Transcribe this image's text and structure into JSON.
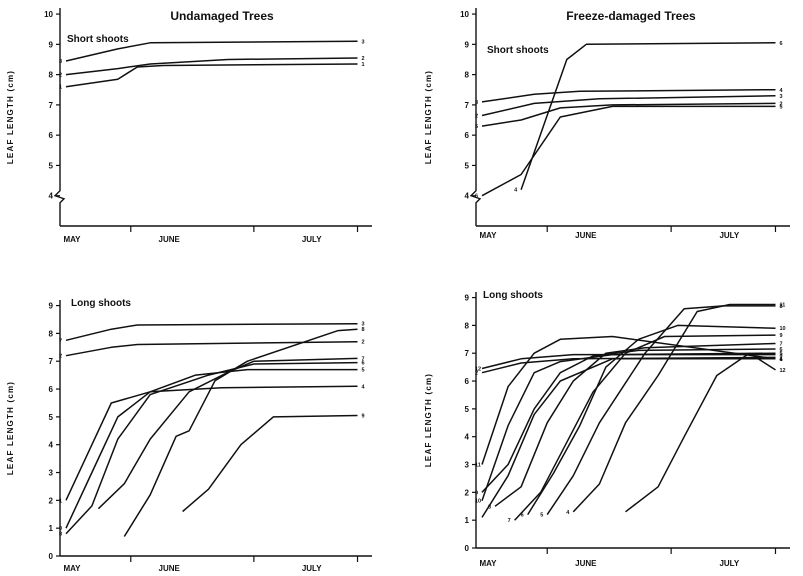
{
  "chart_data": [
    {
      "id": "p1",
      "type": "line",
      "title": "Undamaged Trees",
      "subtitle": "Short shoots",
      "ylabel": "LEAF LENGTH (cm)",
      "xlabel": "",
      "months": [
        "MAY",
        "JUNE",
        "JULY"
      ],
      "yticks": [
        "4",
        "5",
        "6",
        "7",
        "8",
        "9",
        "10"
      ],
      "ylim": [
        3,
        10.2
      ],
      "axis_break": true,
      "series": [
        {
          "label": "3",
          "points": [
            [
              0,
              8.45
            ],
            [
              8,
              8.85
            ],
            [
              13,
              9.05
            ],
            [
              45,
              9.1
            ]
          ],
          "label_at": "end"
        },
        {
          "label": "2",
          "points": [
            [
              0,
              8.0
            ],
            [
              8,
              8.2
            ],
            [
              13,
              8.35
            ],
            [
              25,
              8.5
            ],
            [
              45,
              8.55
            ]
          ],
          "label_at": "end"
        },
        {
          "label": "1",
          "points": [
            [
              0,
              7.6
            ],
            [
              8,
              7.85
            ],
            [
              11,
              8.25
            ],
            [
              15,
              8.3
            ],
            [
              45,
              8.35
            ]
          ],
          "label_at": "end"
        }
      ],
      "start_labels": [
        "3",
        "2",
        "1"
      ]
    },
    {
      "id": "p2",
      "type": "line",
      "title": "Freeze-damaged Trees",
      "subtitle": "Short shoots",
      "ylabel": "LEAF LENGTH (cm)",
      "xlabel": "",
      "months": [
        "MAY",
        "JUNE",
        "JULY"
      ],
      "yticks": [
        "4",
        "5",
        "6",
        "7",
        "8",
        "9",
        "10"
      ],
      "ylim": [
        3,
        10.2
      ],
      "axis_break": true,
      "series": [
        {
          "label": "6",
          "points": [
            [
              6,
              4.2
            ],
            [
              13,
              8.5
            ],
            [
              16,
              9.0
            ],
            [
              45,
              9.05
            ]
          ],
          "label_at": "end"
        },
        {
          "label": "4",
          "points": [
            [
              0,
              7.1
            ],
            [
              8,
              7.35
            ],
            [
              15,
              7.45
            ],
            [
              45,
              7.5
            ]
          ],
          "label_at": "end"
        },
        {
          "label": "3",
          "points": [
            [
              0,
              6.65
            ],
            [
              8,
              7.05
            ],
            [
              18,
              7.2
            ],
            [
              45,
              7.3
            ]
          ],
          "label_at": "end"
        },
        {
          "label": "2",
          "points": [
            [
              0,
              6.3
            ],
            [
              6,
              6.5
            ],
            [
              12,
              6.9
            ],
            [
              20,
              7.0
            ],
            [
              45,
              7.05
            ]
          ],
          "label_at": "end"
        },
        {
          "label": "5",
          "points": [
            [
              0,
              4.0
            ],
            [
              6,
              4.7
            ],
            [
              12,
              6.6
            ],
            [
              20,
              6.95
            ],
            [
              45,
              6.95
            ]
          ],
          "label_at": "end"
        }
      ],
      "start_labels": [
        "4",
        "3",
        "2",
        "5",
        "6"
      ]
    },
    {
      "id": "p3",
      "type": "line",
      "subtitle": "Long shoots",
      "ylabel": "LEAF LENGTH (cm)",
      "xlabel": "",
      "months": [
        "MAY",
        "JUNE",
        "JULY"
      ],
      "yticks": [
        "0",
        "1",
        "2",
        "3",
        "4",
        "5",
        "6",
        "7",
        "8",
        "9"
      ],
      "ylim": [
        0,
        9.2
      ],
      "axis_break": false,
      "series": [
        {
          "label": "3",
          "points": [
            [
              0,
              7.75
            ],
            [
              7,
              8.15
            ],
            [
              11,
              8.3
            ],
            [
              45,
              8.35
            ]
          ],
          "label_at": "end"
        },
        {
          "label": "2",
          "points": [
            [
              0,
              7.2
            ],
            [
              7,
              7.5
            ],
            [
              11,
              7.6
            ],
            [
              45,
              7.7
            ]
          ],
          "label_at": "end"
        },
        {
          "label": "4",
          "points": [
            [
              0,
              2.0
            ],
            [
              4,
              4.0
            ],
            [
              7,
              5.5
            ],
            [
              13,
              5.9
            ],
            [
              24,
              6.05
            ],
            [
              45,
              6.1
            ]
          ],
          "label_at": "end"
        },
        {
          "label": "5",
          "points": [
            [
              0,
              1.0
            ],
            [
              4,
              3.0
            ],
            [
              8,
              5.0
            ],
            [
              13,
              5.9
            ],
            [
              20,
              6.5
            ],
            [
              28,
              6.7
            ],
            [
              45,
              6.7
            ]
          ],
          "label_at": "end"
        },
        {
          "label": "6",
          "points": [
            [
              0,
              0.8
            ],
            [
              4,
              1.8
            ],
            [
              8,
              4.2
            ],
            [
              13,
              5.8
            ],
            [
              22,
              6.5
            ],
            [
              29,
              6.9
            ],
            [
              45,
              6.95
            ]
          ],
          "label_at": "end"
        },
        {
          "label": "7",
          "points": [
            [
              5,
              1.7
            ],
            [
              9,
              2.6
            ],
            [
              13,
              4.2
            ],
            [
              19,
              5.9
            ],
            [
              25,
              6.6
            ],
            [
              29,
              7.0
            ],
            [
              45,
              7.1
            ]
          ],
          "label_at": "end"
        },
        {
          "label": "8",
          "points": [
            [
              9,
              0.7
            ],
            [
              13,
              2.2
            ],
            [
              17,
              4.3
            ],
            [
              19,
              4.5
            ],
            [
              23,
              6.3
            ],
            [
              28,
              7.0
            ],
            [
              42,
              8.1
            ],
            [
              45,
              8.15
            ]
          ],
          "label_at": "end"
        },
        {
          "label": "9",
          "points": [
            [
              18,
              1.6
            ],
            [
              22,
              2.4
            ],
            [
              27,
              4.0
            ],
            [
              32,
              5.0
            ],
            [
              45,
              5.05
            ]
          ],
          "label_at": "end"
        }
      ],
      "start_labels": [
        "7",
        "2",
        "1",
        "0",
        "8"
      ]
    },
    {
      "id": "p4",
      "type": "line",
      "subtitle": "Long shoots",
      "ylabel": "LEAF LENGTH (cm)",
      "xlabel": "",
      "months": [
        "MAY",
        "JUNE",
        "JULY"
      ],
      "yticks": [
        "0",
        "1",
        "2",
        "3",
        "4",
        "5",
        "6",
        "7",
        "8",
        "9"
      ],
      "ylim": [
        0,
        9.2
      ],
      "axis_break": false,
      "series": [
        {
          "label": "11",
          "points": [
            [
              14,
              1.3
            ],
            [
              18,
              2.3
            ],
            [
              22,
              4.5
            ],
            [
              27,
              6.2
            ],
            [
              33,
              8.5
            ],
            [
              38,
              8.75
            ],
            [
              45,
              8.75
            ]
          ],
          "label_at": "end"
        },
        {
          "label": "8",
          "points": [
            [
              10,
              1.2
            ],
            [
              14,
              2.6
            ],
            [
              18,
              4.5
            ],
            [
              25,
              7.0
            ],
            [
              31,
              8.6
            ],
            [
              37,
              8.7
            ],
            [
              45,
              8.7
            ]
          ],
          "label_at": "end"
        },
        {
          "label": "10",
          "points": [
            [
              7,
              1.2
            ],
            [
              11,
              2.7
            ],
            [
              15,
              4.4
            ],
            [
              19,
              6.5
            ],
            [
              24,
              7.5
            ],
            [
              30,
              8.0
            ],
            [
              45,
              7.9
            ]
          ],
          "label_at": "end"
        },
        {
          "label": "9",
          "points": [
            [
              5,
              1.0
            ],
            [
              9,
              2.0
            ],
            [
              13,
              3.8
            ],
            [
              17,
              5.6
            ],
            [
              22,
              7.0
            ],
            [
              28,
              7.6
            ],
            [
              45,
              7.65
            ]
          ],
          "label_at": "end"
        },
        {
          "label": "7",
          "points": [
            [
              2,
              1.5
            ],
            [
              6,
              2.2
            ],
            [
              10,
              4.5
            ],
            [
              14,
              6.0
            ],
            [
              19,
              7.0
            ],
            [
              25,
              7.2
            ],
            [
              45,
              7.35
            ]
          ],
          "label_at": "end"
        },
        {
          "label": "6",
          "points": [
            [
              0,
              2.0
            ],
            [
              4,
              3.0
            ],
            [
              8,
              5.0
            ],
            [
              12,
              6.3
            ],
            [
              17,
              6.9
            ],
            [
              24,
              7.1
            ],
            [
              45,
              7.15
            ]
          ],
          "label_at": "end"
        },
        {
          "label": "5",
          "points": [
            [
              0,
              1.7
            ],
            [
              4,
              4.4
            ],
            [
              8,
              6.3
            ],
            [
              12,
              6.7
            ],
            [
              20,
              6.95
            ],
            [
              45,
              7.0
            ]
          ],
          "label_at": "end"
        },
        {
          "label": "4",
          "points": [
            [
              0,
              3.0
            ],
            [
              4,
              5.8
            ],
            [
              8,
              7.0
            ],
            [
              12,
              7.5
            ],
            [
              20,
              7.6
            ],
            [
              45,
              6.8
            ]
          ],
          "label_at": "end"
        },
        {
          "label": "3",
          "points": [
            [
              0,
              6.45
            ],
            [
              6,
              6.8
            ],
            [
              14,
              6.95
            ],
            [
              45,
              6.95
            ]
          ],
          "label_at": "end"
        },
        {
          "label": "2",
          "points": [
            [
              0,
              6.3
            ],
            [
              6,
              6.65
            ],
            [
              14,
              6.8
            ],
            [
              45,
              6.85
            ]
          ],
          "label_at": "end"
        },
        {
          "label": "12",
          "points": [
            [
              22,
              1.3
            ],
            [
              27,
              2.2
            ],
            [
              31,
              4.0
            ],
            [
              36,
              6.2
            ],
            [
              41,
              7.0
            ],
            [
              45,
              6.4
            ]
          ],
          "label_at": "end"
        },
        {
          "label": "1",
          "points": [
            [
              0,
              1.1
            ],
            [
              4,
              2.6
            ],
            [
              8,
              4.8
            ],
            [
              12,
              6.0
            ],
            [
              20,
              6.8
            ],
            [
              45,
              6.8
            ]
          ],
          "label_at": "end"
        }
      ],
      "start_labels": [
        "4",
        "5",
        "6",
        "7",
        "8",
        "9",
        "10",
        "11",
        "12",
        "2"
      ]
    }
  ]
}
